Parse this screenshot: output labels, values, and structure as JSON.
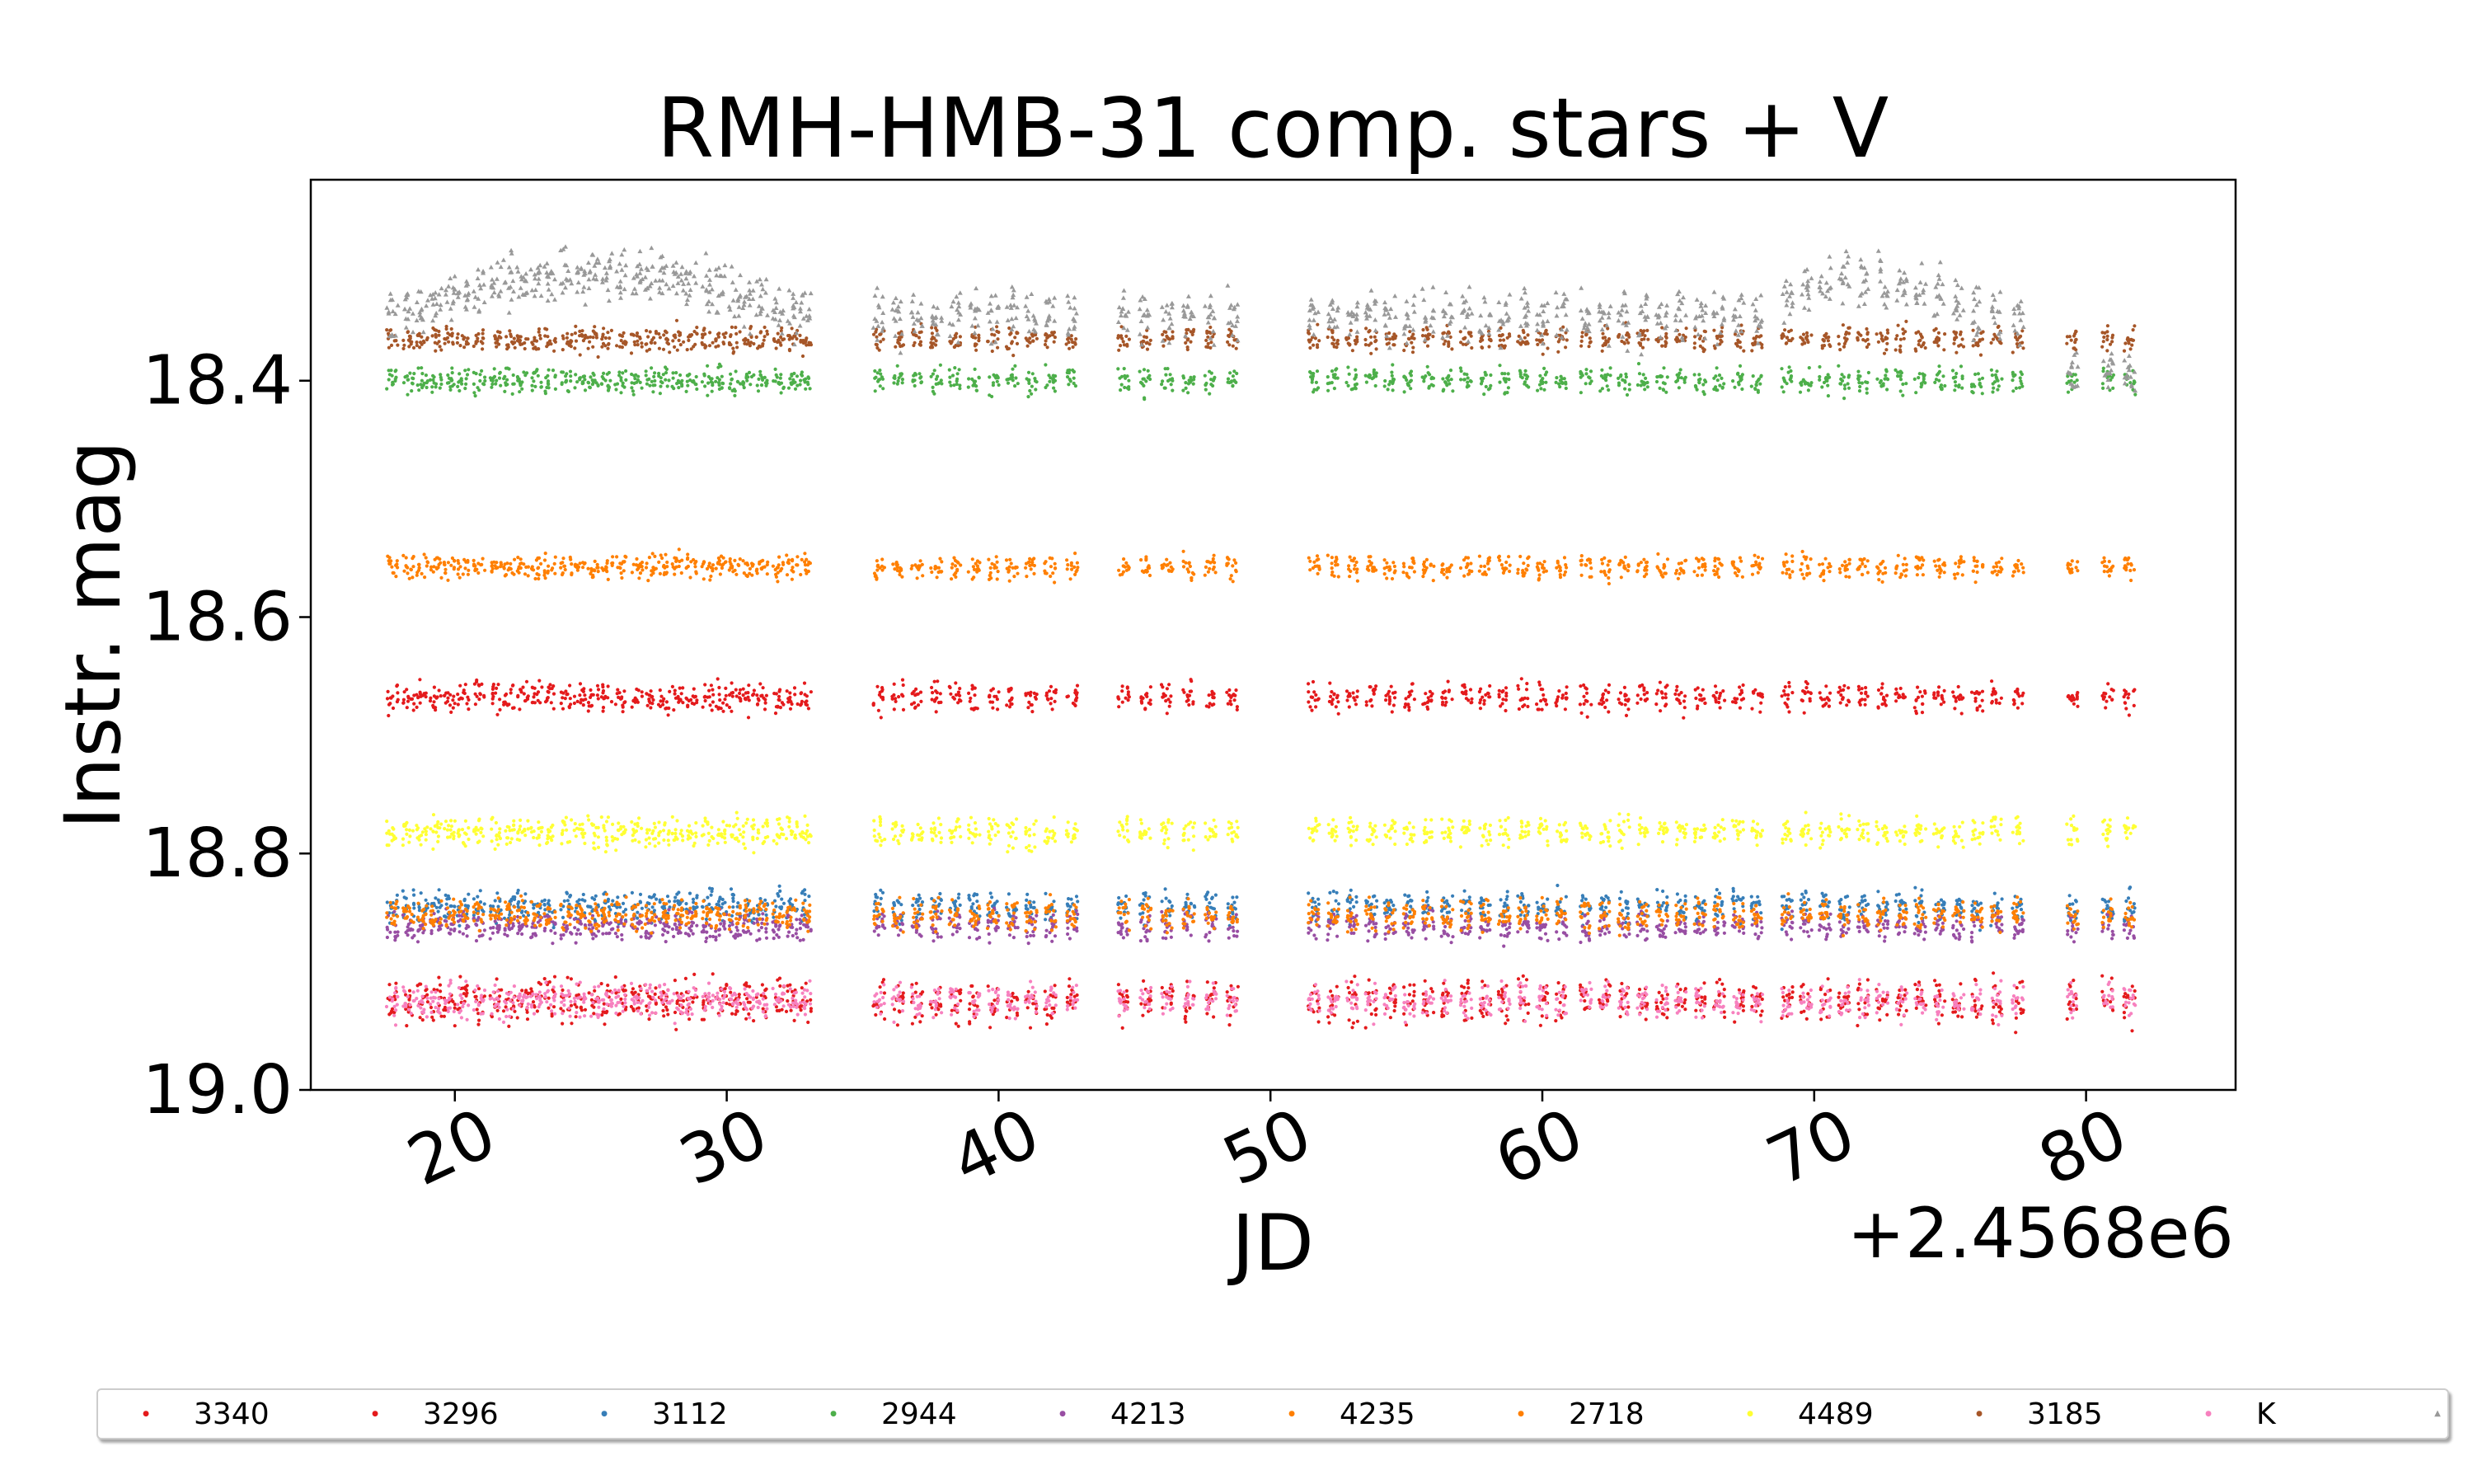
{
  "chart_data": {
    "type": "scatter",
    "title": "RMH-HMB-31 comp. stars + V",
    "xlabel": "JD",
    "ylabel": "Instr. mag",
    "x_offset_label": "+2.4568e6",
    "xlim": [
      14.7,
      85.5
    ],
    "ylim": [
      19.0,
      18.23
    ],
    "y_inverted": true,
    "xticks": [
      20,
      30,
      40,
      50,
      60,
      70,
      80
    ],
    "xtick_labels": [
      "20",
      "30",
      "40",
      "50",
      "60",
      "70",
      "80"
    ],
    "yticks": [
      18.4,
      18.6,
      18.8,
      19.0
    ],
    "ytick_labels": [
      "18.4",
      "18.6",
      "18.8",
      "19.0"
    ],
    "grid": false,
    "legend_position": "bottom",
    "observation_nights": [
      17.7,
      18.3,
      18.8,
      19.3,
      19.8,
      20.3,
      20.9,
      21.5,
      22.0,
      22.5,
      23.0,
      23.5,
      24.1,
      24.6,
      25.1,
      25.6,
      26.1,
      26.7,
      27.2,
      27.7,
      28.2,
      28.7,
      29.3,
      29.8,
      30.3,
      30.8,
      31.3,
      31.9,
      32.4,
      32.9,
      35.6,
      36.3,
      37.0,
      37.7,
      38.4,
      39.1,
      39.8,
      40.5,
      41.2,
      41.9,
      42.7,
      44.6,
      45.4,
      46.2,
      47.0,
      47.8,
      48.6,
      51.6,
      52.3,
      53.0,
      53.7,
      54.4,
      55.1,
      55.8,
      56.5,
      57.2,
      57.9,
      58.6,
      59.3,
      60.0,
      60.7,
      61.6,
      62.3,
      63.0,
      63.7,
      64.4,
      65.1,
      65.8,
      66.5,
      67.2,
      67.9,
      69.0,
      69.7,
      70.4,
      71.1,
      71.8,
      72.5,
      73.2,
      73.9,
      74.6,
      75.3,
      76.0,
      76.7,
      77.5,
      79.5,
      80.8,
      81.6
    ],
    "series": [
      {
        "name": "3340",
        "color": "#e41a1c",
        "marker": "point",
        "mean": 18.925,
        "spread": 0.018
      },
      {
        "name": "3296",
        "color": "#e41a1c",
        "marker": "point",
        "mean": 18.668,
        "spread": 0.012
      },
      {
        "name": "3112",
        "color": "#377eb8",
        "marker": "point",
        "mean": 18.845,
        "spread": 0.013
      },
      {
        "name": "2944",
        "color": "#4daf4a",
        "marker": "point",
        "mean": 18.4,
        "spread": 0.011
      },
      {
        "name": "4213",
        "color": "#984ea3",
        "marker": "point",
        "mean": 18.862,
        "spread": 0.012
      },
      {
        "name": "4235",
        "color": "#ff7f00",
        "marker": "point",
        "mean": 18.852,
        "spread": 0.013
      },
      {
        "name": "2718",
        "color": "#ff7f00",
        "marker": "point",
        "mean": 18.558,
        "spread": 0.01
      },
      {
        "name": "4489",
        "color": "#ffff33",
        "marker": "point",
        "mean": 18.782,
        "spread": 0.012
      },
      {
        "name": "3185",
        "color": "#a65628",
        "marker": "point",
        "mean": 18.365,
        "spread": 0.01
      },
      {
        "name": "K",
        "color": "#f781bf",
        "marker": "point",
        "mean": 18.925,
        "spread": 0.014
      },
      {
        "name": "V",
        "color": "#999999",
        "marker": "triangle",
        "mean": 18.345,
        "spread": 0.022
      }
    ]
  }
}
